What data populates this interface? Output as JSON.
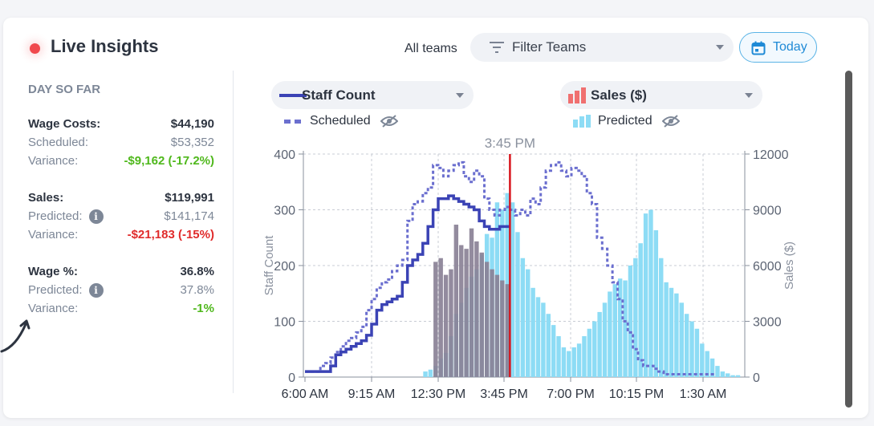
{
  "header": {
    "title": "Live Insights",
    "all_teams_label": "All teams",
    "filter_label": "Filter Teams",
    "today_label": "Today"
  },
  "summary": {
    "section_label": "DAY SO FAR",
    "wage_costs": {
      "label": "Wage Costs:",
      "value": "$44,190",
      "scheduled_label": "Scheduled:",
      "scheduled_value": "$53,352",
      "variance_label": "Variance:",
      "variance_value": "-$9,162 (-17.2%)"
    },
    "sales": {
      "label": "Sales:",
      "value": "$119,991",
      "predicted_label": "Predicted:",
      "predicted_value": "$141,174",
      "variance_label": "Variance:",
      "variance_value": "-$21,183 (-15%)"
    },
    "wage_pct": {
      "label": "Wage %:",
      "value": "36.8%",
      "predicted_label": "Predicted:",
      "predicted_value": "37.8%",
      "variance_label": "Variance:",
      "variance_value": "-1%"
    }
  },
  "legend": {
    "staff_select": "Staff Count",
    "staff_sub": "Scheduled",
    "sales_select": "Sales ($)",
    "sales_sub": "Predicted"
  },
  "colors": {
    "staff_line": "#3b43b5",
    "scheduled_line": "#6b6fcf",
    "sales_bar": "#8a8196",
    "predicted_bar": "#8ddcf5",
    "now_line": "#d8141c",
    "variance_green": "#4fb81c",
    "variance_red": "#e02b2b",
    "live_dot": "#f0494d",
    "accent": "#1f8ad6"
  },
  "chart_data": {
    "type": "line",
    "now_label": "3:45 PM",
    "now_index": 39,
    "ylabel_left": "Staff Count",
    "ylabel_right": "Sales ($)",
    "ylim_left": [
      0,
      400
    ],
    "ylim_right": [
      0,
      12000
    ],
    "y_ticks_left": [
      "0",
      "100",
      "200",
      "300",
      "400"
    ],
    "y_ticks_right": [
      "0",
      "3000",
      "6000",
      "9000",
      "12000"
    ],
    "x_ticks": [
      "6:00 AM",
      "9:15 AM",
      "12:30 PM",
      "3:45 PM",
      "7:00 PM",
      "10:15 PM",
      "1:30 AM"
    ],
    "slots_per_tick": 13,
    "grid": true,
    "series": [
      {
        "name": "Staff Count",
        "style": "solid-line",
        "values": [
          10,
          10,
          10,
          10,
          10,
          20,
          40,
          45,
          50,
          55,
          60,
          65,
          75,
          95,
          120,
          130,
          135,
          140,
          145,
          170,
          200,
          210,
          220,
          240,
          270,
          300,
          320,
          320,
          325,
          320,
          315,
          310,
          305,
          300,
          280,
          270,
          265,
          265,
          270,
          270
        ]
      },
      {
        "name": "Scheduled",
        "style": "dashed-line",
        "values": [
          10,
          10,
          10,
          20,
          25,
          35,
          45,
          55,
          65,
          70,
          80,
          90,
          120,
          140,
          160,
          170,
          175,
          190,
          200,
          210,
          280,
          310,
          315,
          330,
          340,
          380,
          375,
          360,
          370,
          380,
          385,
          360,
          350,
          370,
          360,
          320,
          300,
          290,
          300,
          305,
          300,
          290,
          300,
          290,
          320,
          310,
          340,
          370,
          380,
          385,
          370,
          360,
          375,
          370,
          360,
          330,
          310,
          250,
          230,
          200,
          170,
          140,
          100,
          80,
          50,
          30,
          20,
          20,
          15,
          10,
          5,
          5,
          5,
          5,
          5,
          5,
          5,
          5,
          5,
          5
        ]
      },
      {
        "name": "Sales ($)",
        "style": "bars",
        "values": [
          0,
          0,
          0,
          0,
          0,
          0,
          0,
          0,
          0,
          0,
          0,
          0,
          0,
          0,
          0,
          0,
          0,
          0,
          0,
          0,
          0,
          0,
          0,
          0,
          0,
          6200,
          6400,
          5500,
          5800,
          8200,
          7100,
          6900,
          8000,
          7300,
          6700,
          6200,
          5800,
          5500,
          5200,
          5000
        ]
      },
      {
        "name": "Predicted",
        "style": "bars",
        "values": [
          0,
          0,
          0,
          0,
          0,
          0,
          0,
          0,
          0,
          0,
          0,
          0,
          0,
          0,
          0,
          0,
          0,
          0,
          0,
          0,
          0,
          0,
          0,
          300,
          400,
          600,
          1000,
          1300,
          2200,
          3400,
          4000,
          4800,
          5400,
          5800,
          6600,
          7700,
          7500,
          9400,
          9000,
          9900,
          9400,
          7800,
          6400,
          5800,
          4800,
          4300,
          4000,
          3400,
          2800,
          2200,
          1600,
          1400,
          1600,
          1800,
          2200,
          2600,
          3000,
          3500,
          4000,
          4600,
          5000,
          5300,
          5200,
          6000,
          6400,
          7200,
          8800,
          9000,
          7900,
          6400,
          5100,
          4800,
          4500,
          4000,
          3400,
          3000,
          2600,
          1800,
          1400,
          1000,
          600,
          300,
          200,
          100,
          100,
          0,
          0,
          0,
          0,
          0,
          0,
          0,
          0
        ]
      }
    ]
  }
}
